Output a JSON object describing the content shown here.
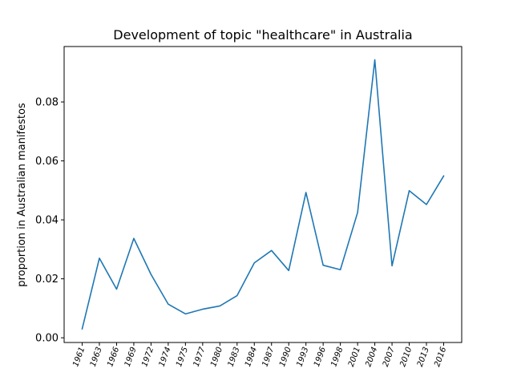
{
  "chart_data": {
    "type": "line",
    "title": "Development of topic \"healthcare\" in Australia",
    "xlabel": "",
    "ylabel": "proportion in Australian manifestos",
    "categories": [
      "1961",
      "1963",
      "1966",
      "1969",
      "1972",
      "1974",
      "1975",
      "1977",
      "1980",
      "1983",
      "1984",
      "1987",
      "1990",
      "1993",
      "1996",
      "1998",
      "2001",
      "2004",
      "2007",
      "2010",
      "2013",
      "2016"
    ],
    "series": [
      {
        "values": [
          0.003,
          0.027,
          0.0165,
          0.0337,
          0.0215,
          0.0114,
          0.0081,
          0.0097,
          0.0108,
          0.0143,
          0.0254,
          0.0296,
          0.0228,
          0.0493,
          0.0246,
          0.0231,
          0.0425,
          0.0943,
          0.0244,
          0.0499,
          0.0452,
          0.0549
        ],
        "color": "#1f77b4"
      }
    ],
    "ylim": [
      -0.0016,
      0.0988
    ],
    "yticks": [
      0.0,
      0.02,
      0.04,
      0.06,
      0.08
    ],
    "ytick_labels": [
      "0.00",
      "0.02",
      "0.04",
      "0.06",
      "0.08"
    ],
    "grid": false,
    "legend": "none"
  }
}
